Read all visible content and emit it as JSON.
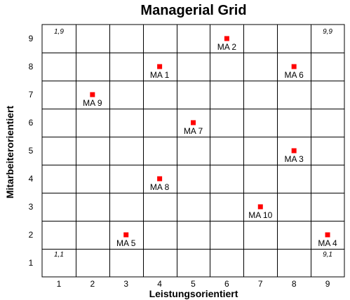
{
  "chart_data": {
    "type": "scatter",
    "title": "Managerial Grid",
    "xlabel": "Leistungsorientiert",
    "ylabel": "Mitarbeiterorientiert",
    "xlim": [
      0.5,
      9.5
    ],
    "ylim": [
      0.5,
      9.5
    ],
    "x_ticks": [
      "1",
      "2",
      "3",
      "4",
      "5",
      "6",
      "7",
      "8",
      "9"
    ],
    "y_ticks": [
      "1",
      "2",
      "3",
      "4",
      "5",
      "6",
      "7",
      "8",
      "9"
    ],
    "grid": true,
    "legend": "none",
    "marker_color": "#ff0000",
    "corner_labels": [
      {
        "text": "1,9",
        "corner": "top-left"
      },
      {
        "text": "9,9",
        "corner": "top-right"
      },
      {
        "text": "1,1",
        "corner": "bottom-left"
      },
      {
        "text": "9,1",
        "corner": "bottom-right"
      }
    ],
    "points": [
      {
        "label": "MA 1",
        "x": 4,
        "y": 8
      },
      {
        "label": "MA 2",
        "x": 6,
        "y": 9
      },
      {
        "label": "MA 3",
        "x": 8,
        "y": 5
      },
      {
        "label": "MA 4",
        "x": 9,
        "y": 2
      },
      {
        "label": "MA 5",
        "x": 3,
        "y": 2
      },
      {
        "label": "MA 6",
        "x": 8,
        "y": 8
      },
      {
        "label": "MA 7",
        "x": 5,
        "y": 6
      },
      {
        "label": "MA 8",
        "x": 4,
        "y": 4
      },
      {
        "label": "MA 9",
        "x": 2,
        "y": 7
      },
      {
        "label": "MA 10",
        "x": 7,
        "y": 3
      }
    ]
  }
}
